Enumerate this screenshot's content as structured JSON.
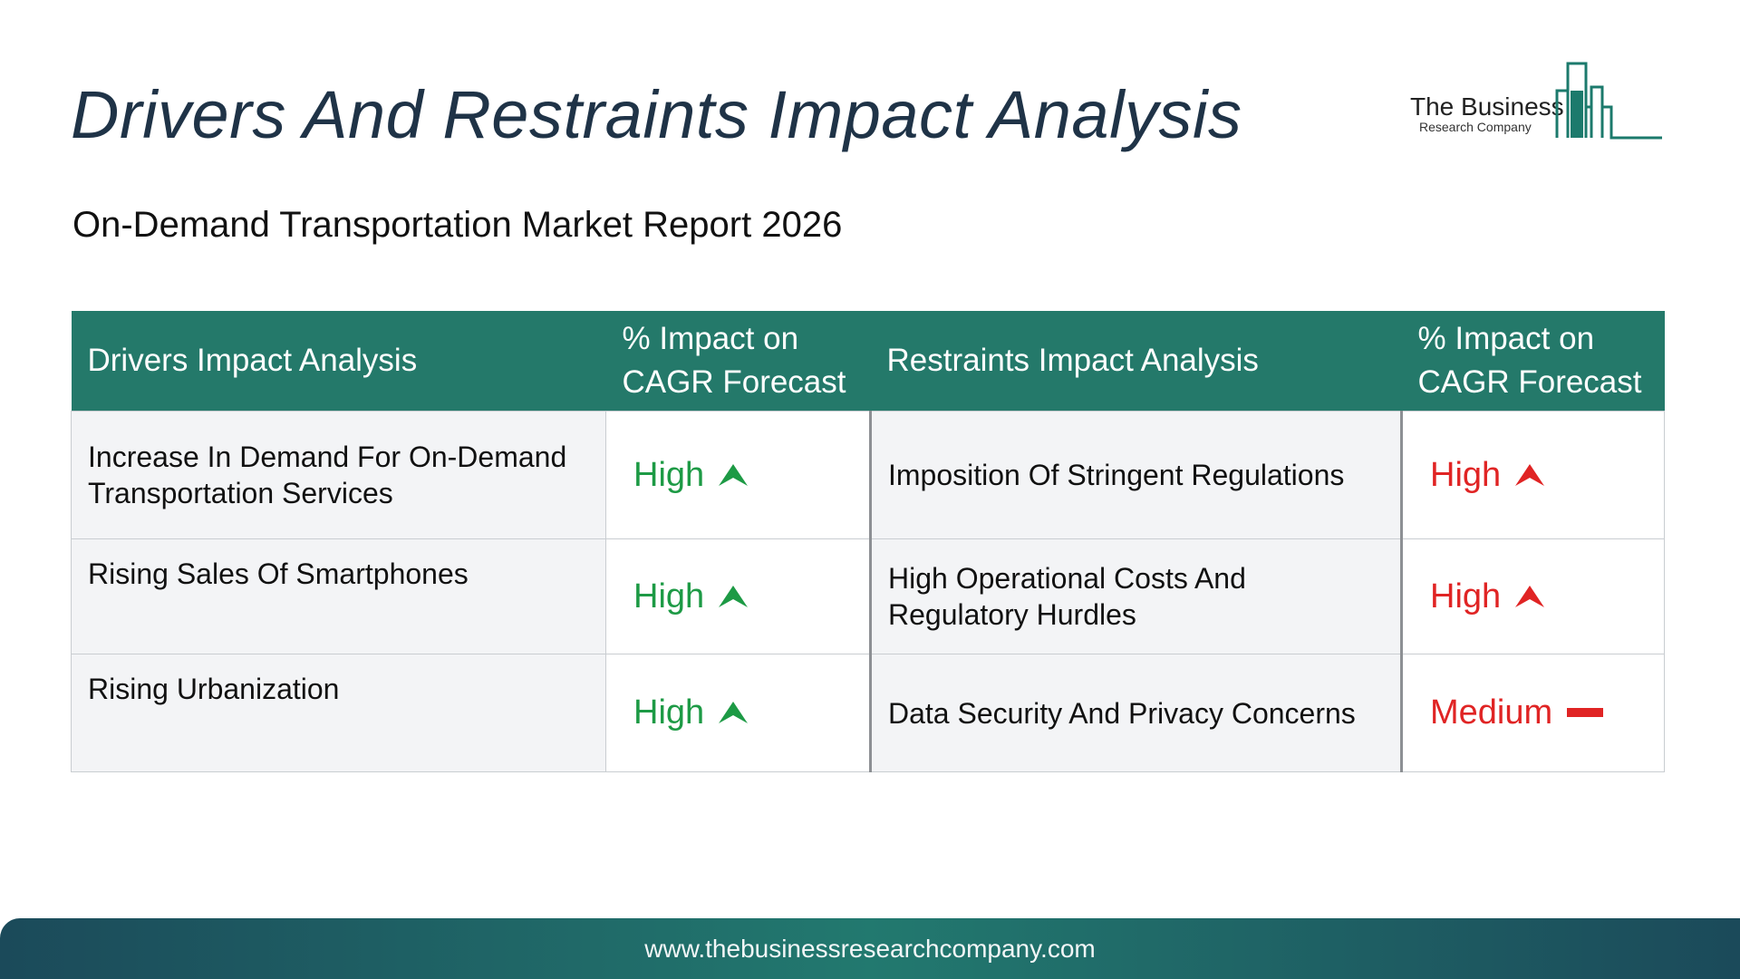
{
  "title": "Drivers And Restraints Impact Analysis",
  "subtitle": "On-Demand Transportation Market Report 2026",
  "logo": {
    "name": "The Business",
    "sub": "Research Company",
    "color": "#1c7a6c"
  },
  "table": {
    "headers": {
      "drivers": "Drivers Impact Analysis",
      "drivers_impact_line1": "% Impact on",
      "drivers_impact_line2": "CAGR Forecast",
      "restraints": "Restraints Impact Analysis",
      "restraints_impact_line1": "% Impact on",
      "restraints_impact_line2": "CAGR Forecast"
    },
    "rows": [
      {
        "driver": "Increase In Demand For On-Demand Transportation Services",
        "driver_impact": "High",
        "driver_icon": "up-arrow-icon",
        "restraint": "Imposition Of Stringent Regulations",
        "restraint_impact": "High",
        "restraint_icon": "up-arrow-icon"
      },
      {
        "driver": "Rising Sales Of Smartphones",
        "driver_impact": "High",
        "driver_icon": "up-arrow-icon",
        "restraint": "High Operational Costs And Regulatory Hurdles",
        "restraint_impact": "High",
        "restraint_icon": "up-arrow-icon"
      },
      {
        "driver": "Rising Urbanization",
        "driver_impact": "High",
        "driver_icon": "up-arrow-icon",
        "restraint": "Data Security And Privacy Concerns",
        "restraint_impact": "Medium",
        "restraint_icon": "dash-icon"
      }
    ]
  },
  "footer": {
    "url": "www.thebusinessresearchcompany.com"
  },
  "colors": {
    "header_bg": "#24796a",
    "driver_level": "#1d9a45",
    "restraint_level": "#e02424",
    "title": "#1f3347"
  }
}
